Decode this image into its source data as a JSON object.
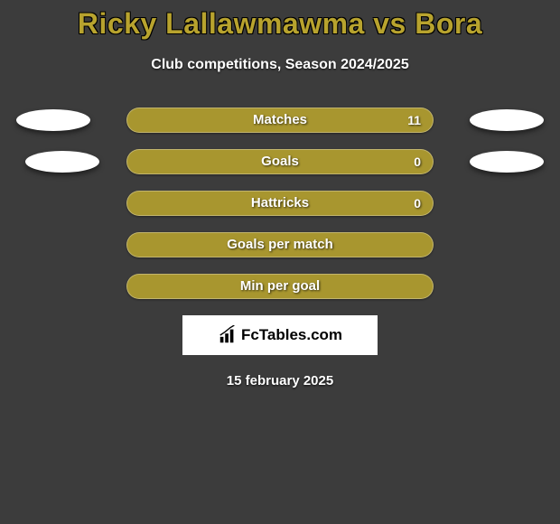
{
  "title": "Ricky Lallawmawma vs Bora",
  "subtitle": "Club competitions, Season 2024/2025",
  "date": "15 february 2025",
  "logo_text": "FcTables.com",
  "background_color": "#3c3c3c",
  "bar_color": "#a8962f",
  "title_color": "#b8a32e",
  "ellipse_color": "#ffffff",
  "rows": [
    {
      "label": "Matches",
      "value": "11",
      "show_value": true,
      "left_ellipse": true,
      "right_ellipse": true,
      "ellipse_inset": false
    },
    {
      "label": "Goals",
      "value": "0",
      "show_value": true,
      "left_ellipse": true,
      "right_ellipse": true,
      "ellipse_inset": true
    },
    {
      "label": "Hattricks",
      "value": "0",
      "show_value": true,
      "left_ellipse": false,
      "right_ellipse": false,
      "ellipse_inset": false
    },
    {
      "label": "Goals per match",
      "value": "",
      "show_value": false,
      "left_ellipse": false,
      "right_ellipse": false,
      "ellipse_inset": false
    },
    {
      "label": "Min per goal",
      "value": "",
      "show_value": false,
      "left_ellipse": false,
      "right_ellipse": false,
      "ellipse_inset": false
    }
  ]
}
